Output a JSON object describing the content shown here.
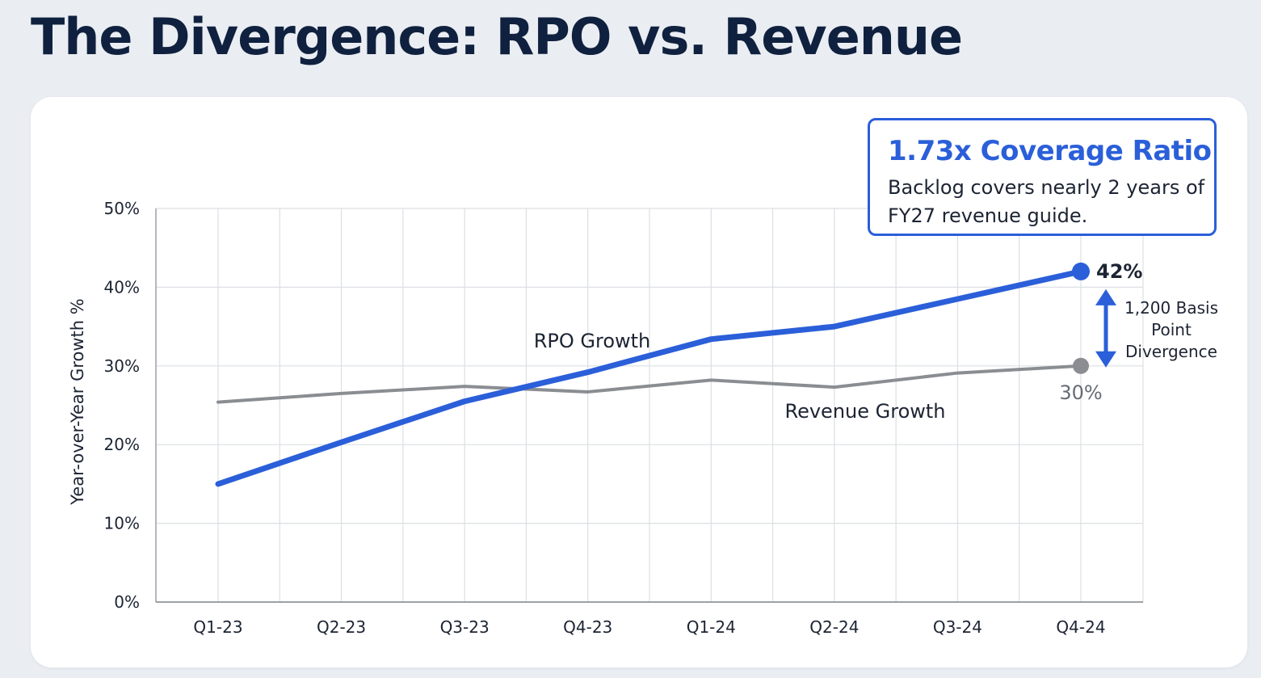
{
  "page": {
    "title": "The Divergence: RPO vs. Revenue"
  },
  "callout": {
    "title": "1.73x Coverage Ratio",
    "body": "Backlog covers nearly 2 years of FY27 revenue guide."
  },
  "colors": {
    "rpo": "#2b5fd9",
    "revenue": "#8a8d91",
    "grid": "#dcdfe3",
    "title": "#10213f"
  },
  "chart_data": {
    "type": "line",
    "title": "",
    "xlabel": "",
    "ylabel": "Year-over-Year Growth %",
    "categories": [
      "Q1-23",
      "Q2-23",
      "Q3-23",
      "Q4-23",
      "Q1-24",
      "Q2-24",
      "Q3-24",
      "Q4-24"
    ],
    "ylim": [
      0,
      50
    ],
    "yticks": [
      0,
      10,
      20,
      30,
      40,
      50
    ],
    "ytick_labels": [
      "0%",
      "10%",
      "20%",
      "30%",
      "40%",
      "50%"
    ],
    "grid": true,
    "series": [
      {
        "name": "RPO Growth",
        "values": [
          15,
          20.3,
          25.5,
          29.2,
          33.4,
          35,
          38.5,
          42
        ],
        "end_label": "42%"
      },
      {
        "name": "Revenue Growth",
        "values": [
          25.4,
          26.5,
          27.4,
          26.7,
          28.2,
          27.3,
          29.1,
          30
        ],
        "end_label": "30%"
      }
    ],
    "annotation": {
      "lines": [
        "1,200 Basis",
        "Point",
        "Divergence"
      ]
    }
  }
}
